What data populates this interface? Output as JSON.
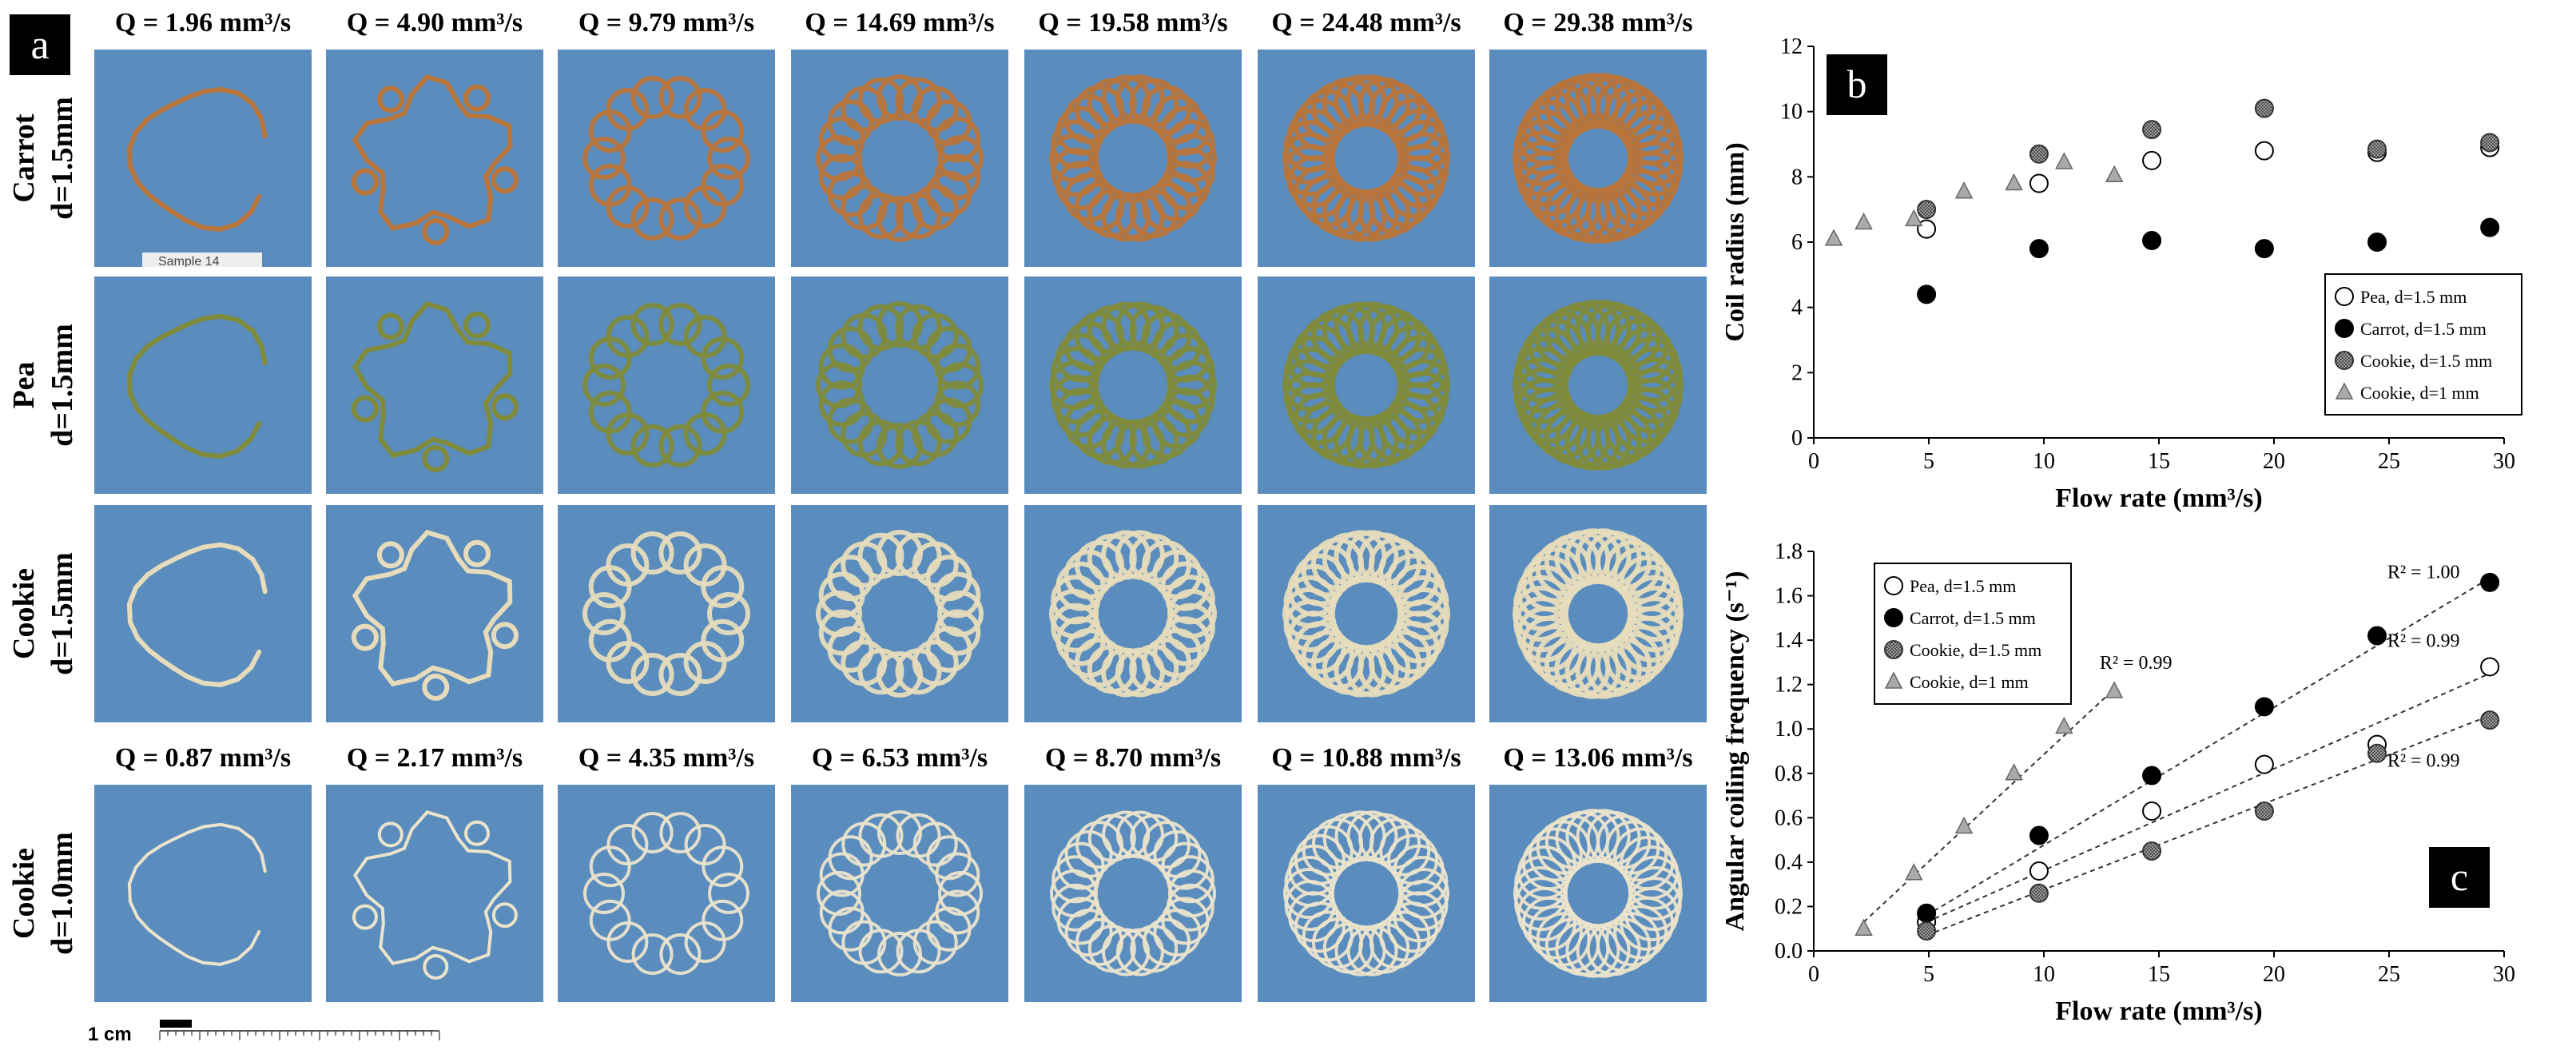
{
  "panel_a": {
    "label": "a",
    "top_flow_labels": [
      "Q = 1.96 mm³/s",
      "Q = 4.90 mm³/s",
      "Q = 9.79 mm³/s",
      "Q = 14.69 mm³/s",
      "Q = 19.58 mm³/s",
      "Q = 24.48 mm³/s",
      "Q = 29.38 mm³/s"
    ],
    "bottom_flow_labels": [
      "Q = 0.87 mm³/s",
      "Q = 2.17 mm³/s",
      "Q = 4.35 mm³/s",
      "Q = 6.53 mm³/s",
      "Q = 8.70 mm³/s",
      "Q = 10.88 mm³/s",
      "Q = 13.06 mm³/s"
    ],
    "rows": [
      {
        "label_line1": "Carrot",
        "label_line2": "d=1.5mm",
        "color": "#b7743a"
      },
      {
        "label_line1": "Pea",
        "label_line2": "d=1.5mm",
        "color": "#7f8a3a"
      },
      {
        "label_line1": "Cookie",
        "label_line2": "d=1.5mm",
        "color": "#e6dcbc"
      },
      {
        "label_line1": "Cookie",
        "label_line2": "d=1.0mm",
        "color": "#ebe4cc"
      }
    ],
    "sample_tag": "Sample 14",
    "scale_bar_label": "1 cm",
    "background_color": "#5a8cbd"
  },
  "chart_data": [
    {
      "panel_label": "b",
      "type": "scatter",
      "xlabel": "Flow rate (mm³/s)",
      "ylabel": "Coil radius (mm)",
      "xlim": [
        0,
        30
      ],
      "ylim": [
        0,
        12
      ],
      "x_ticks": [
        "0",
        "5",
        "10",
        "15",
        "20",
        "25",
        "30"
      ],
      "y_ticks": [
        "0",
        "2",
        "4",
        "6",
        "8",
        "10",
        "12"
      ],
      "legend_position": "bottom-right",
      "series": [
        {
          "name": "Pea, d=1.5 mm",
          "marker": "open-circle",
          "points": [
            [
              4.9,
              6.4
            ],
            [
              9.79,
              7.8
            ],
            [
              14.69,
              8.5
            ],
            [
              19.58,
              8.8
            ],
            [
              24.48,
              8.75
            ],
            [
              29.38,
              8.9
            ]
          ]
        },
        {
          "name": "Carrot, d=1.5 mm",
          "marker": "filled-circle",
          "points": [
            [
              4.9,
              4.4
            ],
            [
              9.79,
              5.8
            ],
            [
              14.69,
              6.05
            ],
            [
              19.58,
              5.8
            ],
            [
              24.48,
              6.0
            ],
            [
              29.38,
              6.45
            ]
          ]
        },
        {
          "name": "Cookie, d=1.5 mm",
          "marker": "hatched-circle",
          "points": [
            [
              4.9,
              7.0
            ],
            [
              9.79,
              8.7
            ],
            [
              14.69,
              9.45
            ],
            [
              19.58,
              10.1
            ],
            [
              24.48,
              8.85
            ],
            [
              29.38,
              9.05
            ]
          ]
        },
        {
          "name": "Cookie, d=1 mm",
          "marker": "triangle",
          "points": [
            [
              0.87,
              6.1
            ],
            [
              2.17,
              6.6
            ],
            [
              4.35,
              6.7
            ],
            [
              6.53,
              7.55
            ],
            [
              8.7,
              7.8
            ],
            [
              10.88,
              8.45
            ],
            [
              13.06,
              8.05
            ]
          ]
        }
      ]
    },
    {
      "panel_label": "c",
      "type": "scatter",
      "xlabel": "Flow rate (mm³/s)",
      "ylabel": "Angular coiling frequency (s⁻¹)",
      "xlim": [
        0,
        30
      ],
      "ylim": [
        0,
        1.8
      ],
      "x_ticks": [
        "0",
        "5",
        "10",
        "15",
        "20",
        "25",
        "30"
      ],
      "y_ticks": [
        "0.0",
        "0.2",
        "0.4",
        "0.6",
        "0.8",
        "1.0",
        "1.2",
        "1.4",
        "1.6",
        "1.8"
      ],
      "legend_position": "top-left",
      "series": [
        {
          "name": "Pea, d=1.5 mm",
          "marker": "open-circle",
          "points": [
            [
              4.9,
              0.13
            ],
            [
              9.79,
              0.36
            ],
            [
              14.69,
              0.63
            ],
            [
              19.58,
              0.84
            ],
            [
              24.48,
              0.93
            ],
            [
              29.38,
              1.28
            ]
          ],
          "fit": [
            [
              4.9,
              0.13
            ],
            [
              29.38,
              1.25
            ]
          ]
        },
        {
          "name": "Carrot, d=1.5 mm",
          "marker": "filled-circle",
          "points": [
            [
              4.9,
              0.17
            ],
            [
              9.79,
              0.52
            ],
            [
              14.69,
              0.79
            ],
            [
              19.58,
              1.1
            ],
            [
              24.48,
              1.42
            ],
            [
              29.38,
              1.66
            ]
          ],
          "fit": [
            [
              4.9,
              0.16
            ],
            [
              29.38,
              1.68
            ]
          ]
        },
        {
          "name": "Cookie, d=1.5 mm",
          "marker": "hatched-circle",
          "points": [
            [
              4.9,
              0.09
            ],
            [
              9.79,
              0.26
            ],
            [
              14.69,
              0.45
            ],
            [
              19.58,
              0.63
            ],
            [
              24.48,
              0.89
            ],
            [
              29.38,
              1.04
            ]
          ],
          "fit": [
            [
              4.9,
              0.07
            ],
            [
              29.38,
              1.06
            ]
          ]
        },
        {
          "name": "Cookie, d=1 mm",
          "marker": "triangle",
          "points": [
            [
              2.17,
              0.1
            ],
            [
              4.35,
              0.35
            ],
            [
              6.53,
              0.56
            ],
            [
              8.7,
              0.8
            ],
            [
              10.88,
              1.01
            ],
            [
              13.06,
              1.17
            ]
          ],
          "fit": [
            [
              2.17,
              0.13
            ],
            [
              13.06,
              1.18
            ]
          ]
        }
      ],
      "annotations": [
        {
          "text": "R² = 1.00",
          "x": 26.5,
          "y": 1.68
        },
        {
          "text": "R² = 0.99",
          "x": 26.5,
          "y": 1.37
        },
        {
          "text": "R² = 0.99",
          "x": 26.5,
          "y": 0.83
        },
        {
          "text": "R² = 0.99",
          "x": 14.0,
          "y": 1.27
        }
      ]
    }
  ]
}
